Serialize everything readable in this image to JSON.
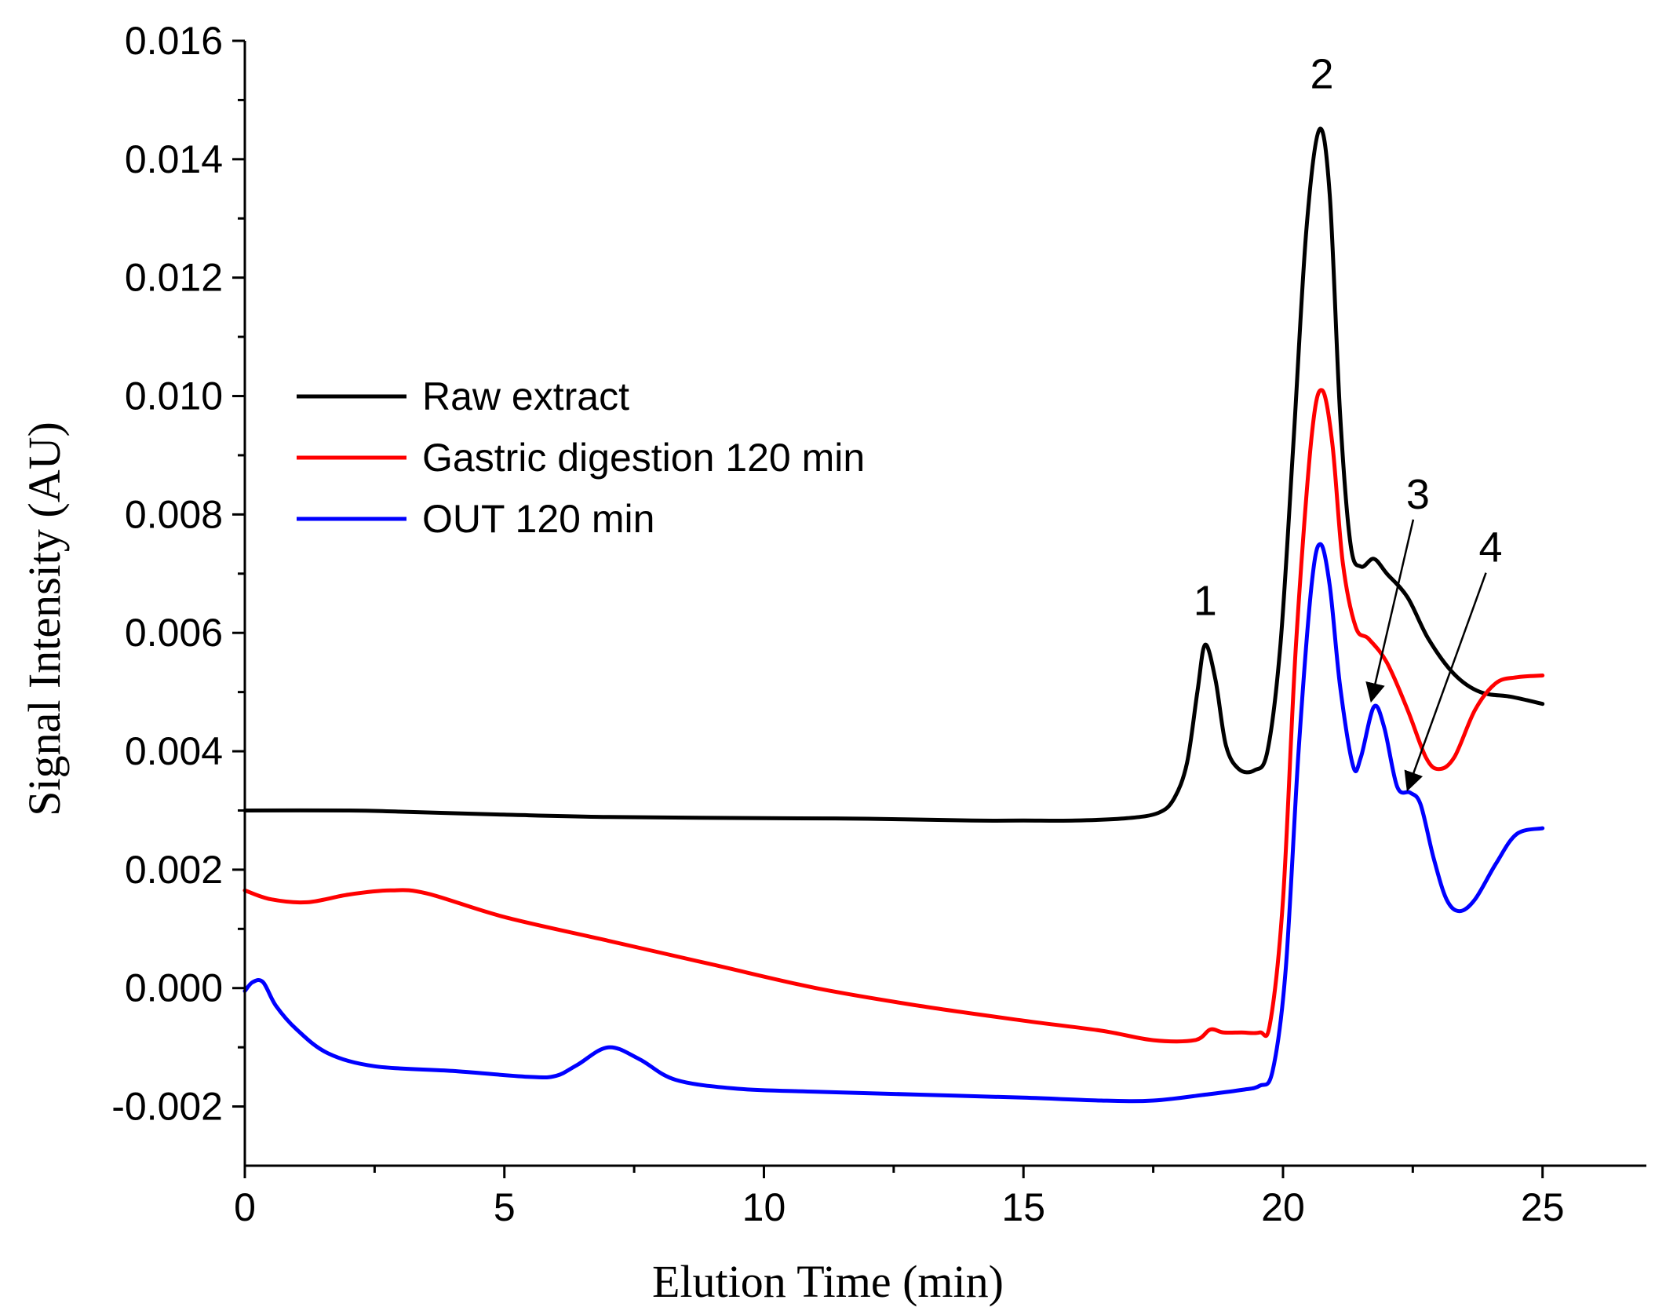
{
  "chart_data": {
    "type": "line",
    "title": "",
    "xlabel": "Elution Time (min)",
    "ylabel": "Signal Intensity (AU)",
    "xlim": [
      0,
      27
    ],
    "ylim": [
      -0.003,
      0.016
    ],
    "xticks": [
      0,
      5,
      10,
      15,
      20,
      25
    ],
    "xtick_labels": [
      "0",
      "5",
      "10",
      "15",
      "20",
      "25"
    ],
    "yticks": [
      -0.002,
      0,
      0.002,
      0.004,
      0.006,
      0.008,
      0.01,
      0.012,
      0.014,
      0.016
    ],
    "ytick_labels": [
      "-0.002",
      "0.000",
      "0.002",
      "0.004",
      "0.006",
      "0.008",
      "0.010",
      "0.012",
      "0.014",
      "0.016"
    ],
    "legend_position": "upper-left",
    "series": [
      {
        "name": "Raw extract",
        "color": "#000000",
        "points": [
          [
            0,
            0.003
          ],
          [
            2,
            0.003
          ],
          [
            3,
            0.00298
          ],
          [
            5,
            0.00293
          ],
          [
            7,
            0.00289
          ],
          [
            10,
            0.00287
          ],
          [
            12,
            0.00286
          ],
          [
            14,
            0.00283
          ],
          [
            15,
            0.00283
          ],
          [
            16,
            0.00283
          ],
          [
            17,
            0.00287
          ],
          [
            17.6,
            0.00296
          ],
          [
            17.9,
            0.0032
          ],
          [
            18.15,
            0.0038
          ],
          [
            18.35,
            0.005
          ],
          [
            18.5,
            0.0058
          ],
          [
            18.7,
            0.0052
          ],
          [
            18.9,
            0.0041
          ],
          [
            19.15,
            0.0037
          ],
          [
            19.45,
            0.00368
          ],
          [
            19.7,
            0.004
          ],
          [
            19.95,
            0.0058
          ],
          [
            20.2,
            0.0092
          ],
          [
            20.45,
            0.0128
          ],
          [
            20.7,
            0.0145
          ],
          [
            20.9,
            0.0134
          ],
          [
            21.1,
            0.0097
          ],
          [
            21.3,
            0.0075
          ],
          [
            21.5,
            0.00712
          ],
          [
            21.75,
            0.00725
          ],
          [
            22.0,
            0.007
          ],
          [
            22.4,
            0.0066
          ],
          [
            22.8,
            0.0059
          ],
          [
            23.3,
            0.0053
          ],
          [
            23.8,
            0.005
          ],
          [
            24.4,
            0.00492
          ],
          [
            25,
            0.0048
          ]
        ]
      },
      {
        "name": "Gastric digestion 120 min",
        "color": "#ff0000",
        "points": [
          [
            0,
            0.00165
          ],
          [
            0.5,
            0.0015
          ],
          [
            1.2,
            0.00145
          ],
          [
            2,
            0.00158
          ],
          [
            2.8,
            0.00165
          ],
          [
            3.5,
            0.0016
          ],
          [
            5,
            0.0012
          ],
          [
            7,
            0.0008
          ],
          [
            9,
            0.0004
          ],
          [
            11,
            0.0
          ],
          [
            13,
            -0.0003
          ],
          [
            15,
            -0.00055
          ],
          [
            16.5,
            -0.00072
          ],
          [
            17.5,
            -0.00088
          ],
          [
            18.3,
            -0.00088
          ],
          [
            18.6,
            -0.0007
          ],
          [
            18.85,
            -0.00075
          ],
          [
            19.2,
            -0.00075
          ],
          [
            19.55,
            -0.00075
          ],
          [
            19.75,
            -0.0006
          ],
          [
            20.0,
            0.0015
          ],
          [
            20.25,
            0.0058
          ],
          [
            20.55,
            0.0093
          ],
          [
            20.75,
            0.0101
          ],
          [
            20.95,
            0.0092
          ],
          [
            21.15,
            0.0072
          ],
          [
            21.4,
            0.0061
          ],
          [
            21.65,
            0.0059
          ],
          [
            22.0,
            0.0055
          ],
          [
            22.4,
            0.0047
          ],
          [
            22.75,
            0.0039
          ],
          [
            23.0,
            0.0037
          ],
          [
            23.3,
            0.0039
          ],
          [
            23.7,
            0.0047
          ],
          [
            24.1,
            0.00515
          ],
          [
            24.5,
            0.00525
          ],
          [
            25,
            0.00528
          ]
        ]
      },
      {
        "name": "OUT 120 min",
        "color": "#0000ff",
        "points": [
          [
            0,
            -5e-05
          ],
          [
            0.15,
            0.0001
          ],
          [
            0.35,
            0.0001
          ],
          [
            0.6,
            -0.0003
          ],
          [
            1,
            -0.0007
          ],
          [
            1.6,
            -0.0011
          ],
          [
            2.5,
            -0.00132
          ],
          [
            4,
            -0.0014
          ],
          [
            5.5,
            -0.0015
          ],
          [
            6.0,
            -0.00148
          ],
          [
            6.4,
            -0.0013
          ],
          [
            7.0,
            -0.001
          ],
          [
            7.6,
            -0.0012
          ],
          [
            8.3,
            -0.00155
          ],
          [
            9.5,
            -0.0017
          ],
          [
            11,
            -0.00175
          ],
          [
            13,
            -0.0018
          ],
          [
            15,
            -0.00185
          ],
          [
            16.5,
            -0.0019
          ],
          [
            17.5,
            -0.0019
          ],
          [
            18.5,
            -0.0018
          ],
          [
            19.2,
            -0.00172
          ],
          [
            19.55,
            -0.00165
          ],
          [
            19.8,
            -0.0014
          ],
          [
            20.05,
            0.0003
          ],
          [
            20.3,
            0.004
          ],
          [
            20.55,
            0.0068
          ],
          [
            20.72,
            0.0075
          ],
          [
            20.9,
            0.0068
          ],
          [
            21.1,
            0.0051
          ],
          [
            21.35,
            0.00375
          ],
          [
            21.5,
            0.0039
          ],
          [
            21.75,
            0.00475
          ],
          [
            21.95,
            0.0044
          ],
          [
            22.2,
            0.0034
          ],
          [
            22.45,
            0.0033
          ],
          [
            22.65,
            0.0031
          ],
          [
            22.9,
            0.0022
          ],
          [
            23.15,
            0.0015
          ],
          [
            23.4,
            0.0013
          ],
          [
            23.7,
            0.0015
          ],
          [
            24.1,
            0.0021
          ],
          [
            24.5,
            0.0026
          ],
          [
            25,
            0.0027
          ]
        ]
      }
    ],
    "annotations": [
      {
        "text": "1",
        "x": 18.5,
        "y": 0.0063
      },
      {
        "text": "2",
        "x": 20.75,
        "y": 0.0152
      },
      {
        "text": "3",
        "x": 22.6,
        "y": 0.0081,
        "arrow_to": [
          21.7,
          0.0048
        ]
      },
      {
        "text": "4",
        "x": 24.0,
        "y": 0.0072,
        "arrow_to": [
          22.4,
          0.0033
        ]
      }
    ]
  }
}
